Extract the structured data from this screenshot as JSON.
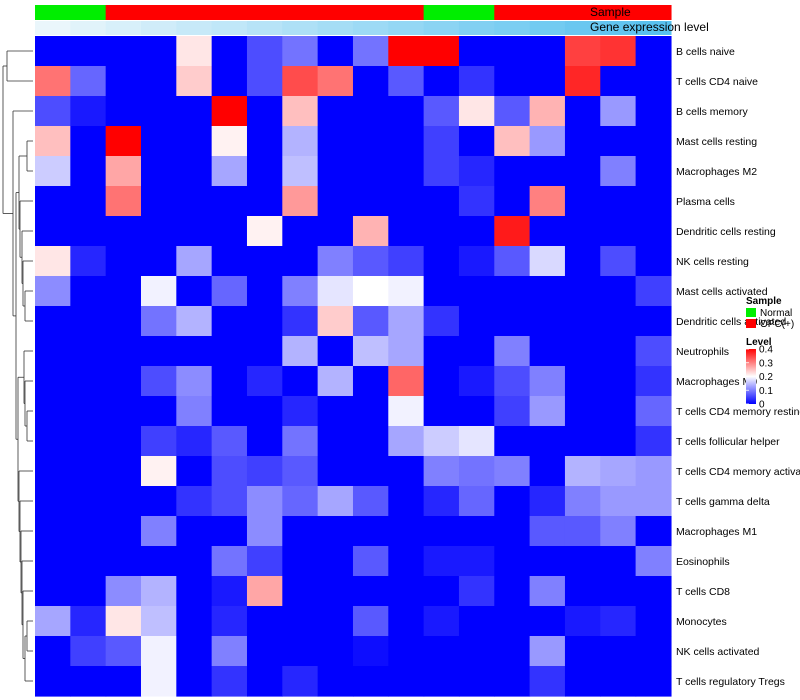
{
  "chart_data": {
    "type": "heatmap",
    "annotation_labels": {
      "sample": "Sample",
      "gene": "Gene expression level"
    },
    "rows": [
      "B cells naive",
      "T cells CD4 naive",
      "B cells memory",
      "Mast cells resting",
      "Macrophages M2",
      "Plasma cells",
      "Dendritic cells resting",
      "NK cells resting",
      "Mast cells activated",
      "Dendritic cells activated",
      "Neutrophils",
      "Macrophages M0",
      "T cells CD4 memory resting",
      "T cells follicular helper",
      "T cells CD4 memory activated",
      "T cells gamma delta",
      "Macrophages M1",
      "Eosinophils",
      "T cells CD8",
      "Monocytes",
      "NK cells activated",
      "T cells regulatory  Tregs"
    ],
    "sample_groups": [
      "Normal",
      "Normal",
      "OPC(+)",
      "OPC(+)",
      "OPC(+)",
      "OPC(+)",
      "OPC(+)",
      "OPC(+)",
      "OPC(+)",
      "OPC(+)",
      "OPC(+)",
      "Normal",
      "Normal",
      "OPC(+)",
      "OPC(+)",
      "OPC(+)",
      "OPC(+)",
      "OPC(+)"
    ],
    "gene_expression_level": [
      0.0,
      0.06,
      0.12,
      0.18,
      0.24,
      0.29,
      0.35,
      0.41,
      0.47,
      0.53,
      0.59,
      0.65,
      0.71,
      0.76,
      0.82,
      0.88,
      0.94,
      1.0
    ],
    "values": [
      [
        0.0,
        0.0,
        0.0,
        0.0,
        0.22,
        0.0,
        0.06,
        0.09,
        0.0,
        0.09,
        0.4,
        0.4,
        0.0,
        0.0,
        0.0,
        0.35,
        0.36,
        0
      ],
      [
        0.31,
        0.08,
        0.0,
        0.0,
        0.24,
        0.0,
        0.06,
        0.34,
        0.31,
        0.0,
        0.07,
        0.0,
        0.04,
        0.0,
        0.0,
        0.37,
        0.0,
        0
      ],
      [
        0.06,
        0.02,
        0.0,
        0.0,
        0.0,
        0.4,
        0.0,
        0.25,
        0.0,
        0.0,
        0.0,
        0.07,
        0.22,
        0.07,
        0.26,
        0.0,
        0.12,
        0
      ],
      [
        0.25,
        0.0,
        0.4,
        0.0,
        0.0,
        0.21,
        0.0,
        0.14,
        0.0,
        0.0,
        0.0,
        0.05,
        0.0,
        0.25,
        0.12,
        0.0,
        0.0,
        0
      ],
      [
        0.16,
        0.0,
        0.27,
        0.0,
        0.0,
        0.13,
        0.0,
        0.15,
        0.0,
        0.0,
        0.0,
        0.05,
        0.03,
        0.0,
        0.0,
        0.0,
        0.1,
        0
      ],
      [
        0.0,
        0.0,
        0.31,
        0.0,
        0.0,
        0.0,
        0.0,
        0.28,
        0.0,
        0.0,
        0.0,
        0.0,
        0.04,
        0.0,
        0.3,
        0.0,
        0.0,
        0
      ],
      [
        0.0,
        0.0,
        0.0,
        0.0,
        0.0,
        0.0,
        0.21,
        0.0,
        0.0,
        0.26,
        0.0,
        0.0,
        0.0,
        0.38,
        0.0,
        0.0,
        0.0,
        0
      ],
      [
        0.22,
        0.03,
        0.0,
        0.0,
        0.13,
        0.0,
        0.0,
        0.0,
        0.1,
        0.07,
        0.05,
        0.0,
        0.02,
        0.07,
        0.17,
        0.0,
        0.06,
        0
      ],
      [
        0.11,
        0.0,
        0.0,
        0.19,
        0.0,
        0.08,
        0.0,
        0.1,
        0.18,
        0.2,
        0.19,
        0.0,
        0.0,
        0.0,
        0.0,
        0.0,
        0.0,
        0.05
      ],
      [
        0.0,
        0.0,
        0.0,
        0.09,
        0.14,
        0.0,
        0.0,
        0.04,
        0.24,
        0.07,
        0.13,
        0.04,
        0.0,
        0.0,
        0.0,
        0.0,
        0.0,
        0
      ],
      [
        0.0,
        0.0,
        0.0,
        0.0,
        0.0,
        0.0,
        0.0,
        0.14,
        0.0,
        0.15,
        0.13,
        0.0,
        0.0,
        0.1,
        0.0,
        0.0,
        0.0,
        0.06
      ],
      [
        0.0,
        0.0,
        0.0,
        0.06,
        0.11,
        0.0,
        0.03,
        0.0,
        0.14,
        0.0,
        0.32,
        0.0,
        0.02,
        0.06,
        0.1,
        0.0,
        0.0,
        0.04
      ],
      [
        0.0,
        0.0,
        0.0,
        0.0,
        0.1,
        0.0,
        0.0,
        0.03,
        0.0,
        0.0,
        0.19,
        0.0,
        0.0,
        0.05,
        0.12,
        0.0,
        0.0,
        0.08
      ],
      [
        0.0,
        0.0,
        0.0,
        0.05,
        0.03,
        0.07,
        0.0,
        0.09,
        0.0,
        0.0,
        0.13,
        0.16,
        0.18,
        0.0,
        0.0,
        0.0,
        0.0,
        0.04
      ],
      [
        0.0,
        0.0,
        0.0,
        0.21,
        0.0,
        0.06,
        0.05,
        0.07,
        0.0,
        0.0,
        0.0,
        0.1,
        0.09,
        0.1,
        0.0,
        0.14,
        0.13,
        0.12
      ],
      [
        0.0,
        0.0,
        0.0,
        0.0,
        0.04,
        0.06,
        0.11,
        0.08,
        0.13,
        0.07,
        0.0,
        0.03,
        0.08,
        0.0,
        0.03,
        0.1,
        0.12,
        0.12
      ],
      [
        0.0,
        0.0,
        0.0,
        0.1,
        0.0,
        0.0,
        0.11,
        0.0,
        0.0,
        0.0,
        0.0,
        0.0,
        0.0,
        0.0,
        0.07,
        0.07,
        0.1,
        0
      ],
      [
        0.0,
        0.0,
        0.0,
        0.0,
        0.0,
        0.09,
        0.05,
        0.0,
        0.0,
        0.07,
        0.0,
        0.02,
        0.02,
        0.0,
        0.0,
        0.0,
        0.0,
        0.1
      ],
      [
        0.0,
        0.0,
        0.11,
        0.14,
        0.0,
        0.02,
        0.27,
        0.0,
        0.0,
        0.0,
        0.0,
        0.0,
        0.04,
        0.0,
        0.1,
        0.0,
        0.0,
        0
      ],
      [
        0.13,
        0.03,
        0.22,
        0.15,
        0.0,
        0.03,
        0.0,
        0.0,
        0.0,
        0.07,
        0.0,
        0.02,
        0.0,
        0.0,
        0.0,
        0.02,
        0.03,
        0
      ],
      [
        0.0,
        0.05,
        0.07,
        0.19,
        0.0,
        0.1,
        0.0,
        0.0,
        0.0,
        0.01,
        0.0,
        0.0,
        0.0,
        0.0,
        0.12,
        0.0,
        0.0,
        0
      ],
      [
        0.0,
        0.0,
        0.0,
        0.19,
        0.0,
        0.04,
        0.0,
        0.03,
        0.0,
        0.0,
        0.0,
        0.0,
        0.0,
        0.0,
        0.04,
        0.0,
        0.0,
        0
      ]
    ],
    "color_scale": {
      "min": 0,
      "max": 0.4,
      "low": "#0000ff",
      "mid": "#ffffff",
      "high": "#ff0000"
    },
    "colors": {
      "Normal": "#00ee00",
      "OPC(+)": "#ff0000",
      "gene_low": "#eaf6fb",
      "gene_high": "#58c1ef"
    },
    "legend": {
      "sample_title": "Sample",
      "sample_items": [
        "Normal",
        "OPC(+)"
      ],
      "level_title": "Level",
      "level_ticks": [
        0.4,
        0.3,
        0.2,
        0.1,
        0
      ],
      "level_tick_labels": [
        "0.4",
        "0.3",
        "0.2",
        "0.1",
        "0"
      ],
      "placement": "right"
    },
    "row_dendrogram": true
  }
}
